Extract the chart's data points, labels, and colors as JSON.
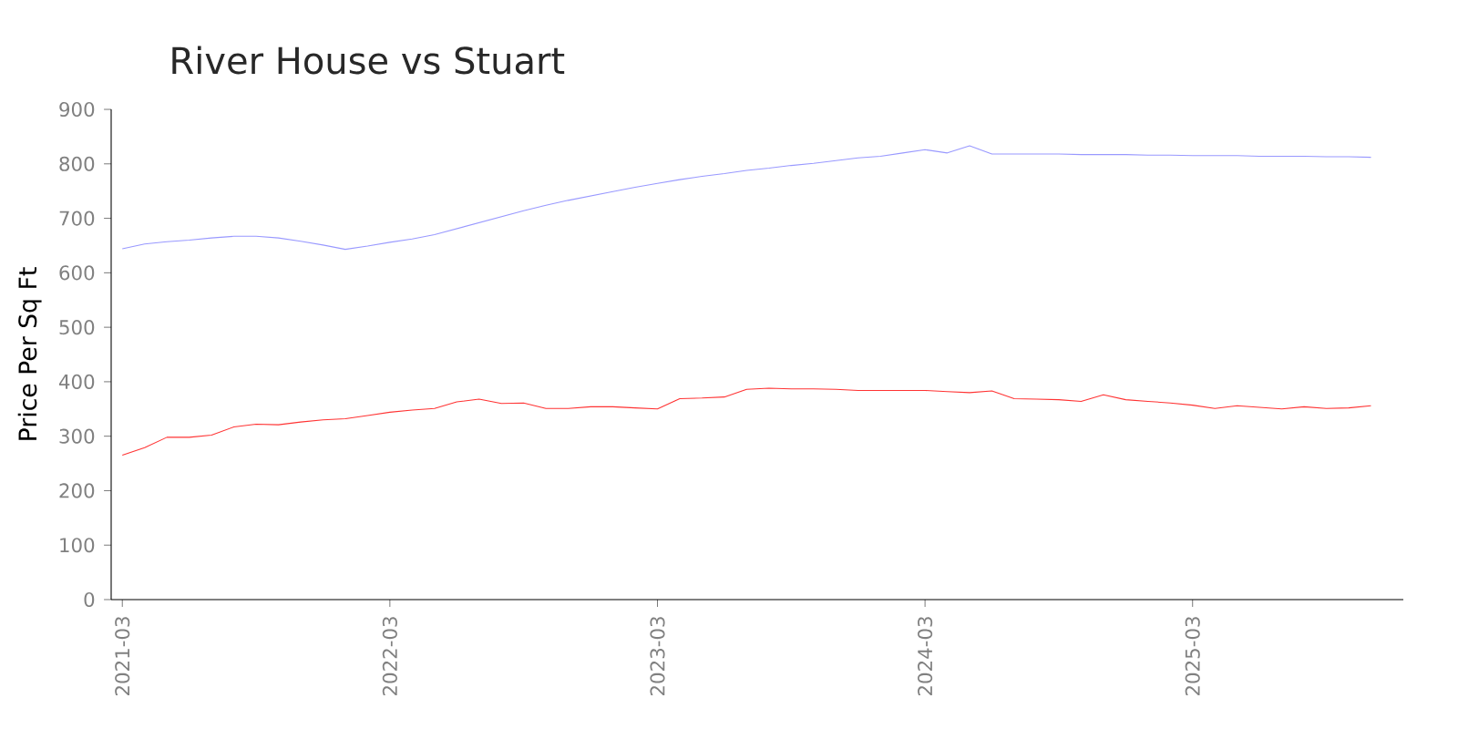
{
  "chart_data": {
    "type": "line",
    "title": "River House vs Stuart",
    "ylabel": "Price Per Sq Ft",
    "x": [
      "2021-03",
      "2021-04",
      "2021-05",
      "2021-06",
      "2021-07",
      "2021-08",
      "2021-09",
      "2021-10",
      "2021-11",
      "2021-12",
      "2022-01",
      "2022-02",
      "2022-03",
      "2022-04",
      "2022-05",
      "2022-06",
      "2022-07",
      "2022-08",
      "2022-09",
      "2022-10",
      "2022-11",
      "2022-12",
      "2023-01",
      "2023-02",
      "2023-03",
      "2023-04",
      "2023-05",
      "2023-06",
      "2023-07",
      "2023-08",
      "2023-09",
      "2023-10",
      "2023-11",
      "2023-12",
      "2024-01",
      "2024-02",
      "2024-03",
      "2024-04",
      "2024-05",
      "2024-06",
      "2024-07",
      "2024-08",
      "2024-09",
      "2024-10",
      "2024-11",
      "2024-12",
      "2025-01",
      "2025-02",
      "2025-03",
      "2025-04",
      "2025-05",
      "2025-06",
      "2025-07",
      "2025-08",
      "2025-09",
      "2025-10",
      "2025-11"
    ],
    "series": [
      {
        "color": "#9999ff",
        "values": [
          644,
          653,
          657,
          660,
          664,
          667,
          667,
          664,
          658,
          651,
          643,
          649,
          656,
          662,
          670,
          681,
          692,
          703,
          714,
          724,
          733,
          741,
          749,
          757,
          764,
          771,
          777,
          782,
          788,
          792,
          797,
          801,
          806,
          811,
          814,
          820,
          826,
          820,
          833,
          818,
          818,
          818,
          818,
          817,
          817,
          817,
          816,
          816,
          815,
          815,
          815,
          814,
          814,
          814,
          813,
          813,
          812
        ]
      },
      {
        "color": "#ff3333",
        "values": [
          265,
          279,
          298,
          298,
          302,
          317,
          322,
          321,
          326,
          330,
          332,
          338,
          344,
          348,
          351,
          363,
          368,
          360,
          361,
          351,
          351,
          354,
          354,
          352,
          350,
          369,
          370,
          372,
          386,
          388,
          387,
          387,
          386,
          384,
          384,
          384,
          384,
          382,
          380,
          383,
          369,
          368,
          367,
          364,
          376,
          367,
          364,
          361,
          357,
          351,
          356,
          353,
          350,
          354,
          351,
          352,
          356
        ]
      }
    ],
    "xlim": [
      "2021-02-15",
      "2025-12-15"
    ],
    "xticks": [
      "2021-03",
      "2022-03",
      "2023-03",
      "2024-03",
      "2025-03"
    ],
    "ylim": [
      0,
      900
    ],
    "yticks": [
      0,
      100,
      200,
      300,
      400,
      500,
      600,
      700,
      800,
      900
    ],
    "grid": false,
    "legend": false,
    "marker": "none",
    "line_style": "solid"
  }
}
